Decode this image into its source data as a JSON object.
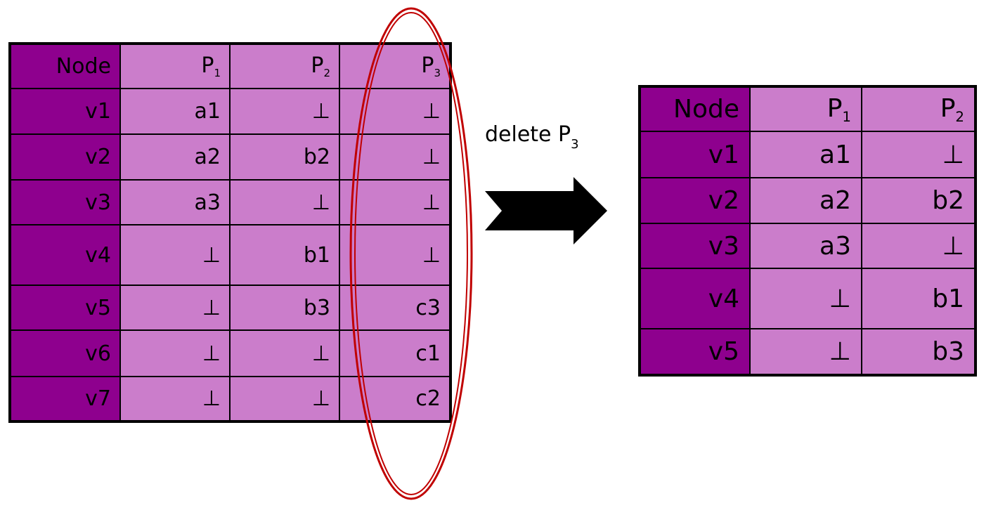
{
  "colors": {
    "node_column": "#8e008e",
    "value_cells": "#cb7dcb",
    "grid_lines": "#000000",
    "ellipse": "#c00000",
    "arrow": "#000000"
  },
  "left_table": {
    "header": {
      "node": "Node",
      "columns": [
        {
          "base": "P",
          "sub": "1"
        },
        {
          "base": "P",
          "sub": "2"
        },
        {
          "base": "P",
          "sub": "3"
        }
      ]
    },
    "rows": [
      {
        "node": "v1",
        "cells": [
          "a1",
          "⊥",
          "⊥"
        ]
      },
      {
        "node": "v2",
        "cells": [
          "a2",
          "b2",
          "⊥"
        ]
      },
      {
        "node": "v3",
        "cells": [
          "a3",
          "⊥",
          "⊥"
        ]
      },
      {
        "node": "v4",
        "cells": [
          "⊥",
          "b1",
          "⊥"
        ]
      },
      {
        "node": "v5",
        "cells": [
          "⊥",
          "b3",
          "c3"
        ]
      },
      {
        "node": "v6",
        "cells": [
          "⊥",
          "⊥",
          "c1"
        ]
      },
      {
        "node": "v7",
        "cells": [
          "⊥",
          "⊥",
          "c2"
        ]
      }
    ]
  },
  "operation": {
    "text": "delete P",
    "sub": "3",
    "arrow_icon": "right-arrow-icon",
    "highlight_icon": "ellipse-highlight-icon"
  },
  "right_table": {
    "header": {
      "node": "Node",
      "columns": [
        {
          "base": "P",
          "sub": "1"
        },
        {
          "base": "P",
          "sub": "2"
        }
      ]
    },
    "rows": [
      {
        "node": "v1",
        "cells": [
          "a1",
          "⊥"
        ]
      },
      {
        "node": "v2",
        "cells": [
          "a2",
          "b2"
        ]
      },
      {
        "node": "v3",
        "cells": [
          "a3",
          "⊥"
        ]
      },
      {
        "node": "v4",
        "cells": [
          "⊥",
          "b1"
        ]
      },
      {
        "node": "v5",
        "cells": [
          "⊥",
          "b3"
        ]
      }
    ]
  }
}
